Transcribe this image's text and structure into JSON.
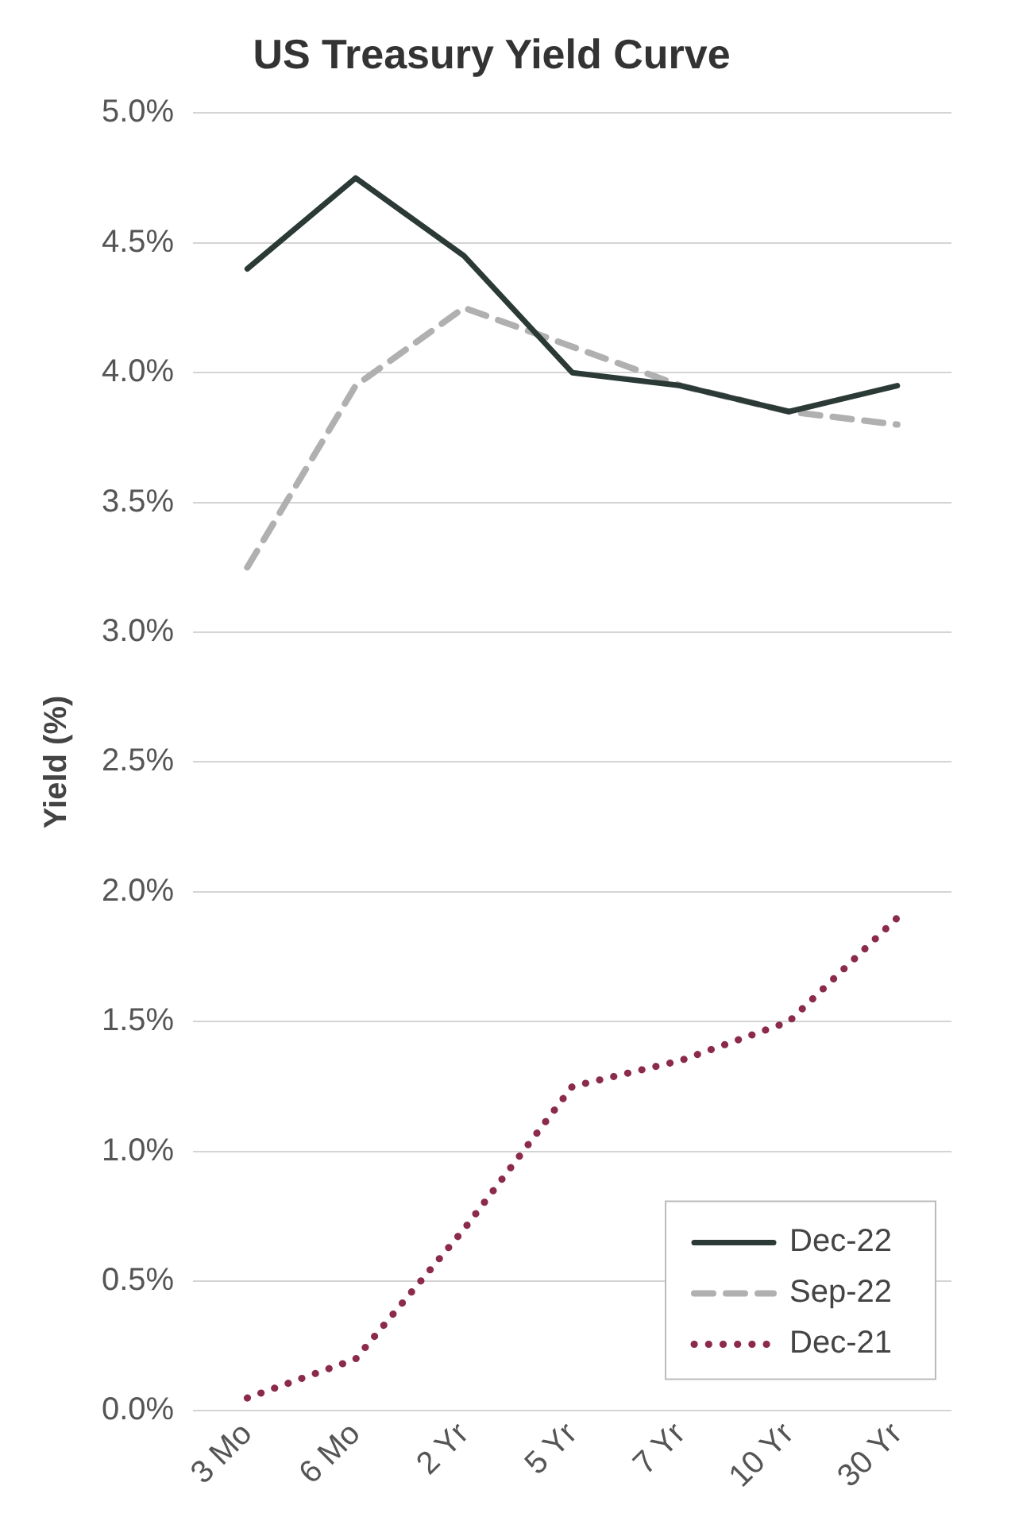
{
  "chart_data": {
    "type": "line",
    "title": "US Treasury Yield Curve",
    "ylabel": "Yield (%)",
    "categories": [
      "3 Mo",
      "6 Mo",
      "2 Yr",
      "5 Yr",
      "7 Yr",
      "10 Yr",
      "30 Yr"
    ],
    "series": [
      {
        "name": "Dec-22",
        "color": "#2b3a36",
        "line_style": "solid",
        "values": [
          4.4,
          4.75,
          4.45,
          4.0,
          3.95,
          3.85,
          3.95
        ]
      },
      {
        "name": "Sep-22",
        "color": "#b0b0b0",
        "line_style": "dashed",
        "values": [
          3.25,
          3.95,
          4.25,
          4.1,
          3.95,
          3.85,
          3.8
        ]
      },
      {
        "name": "Dec-21",
        "color": "#8b2a4a",
        "line_style": "dotted",
        "values": [
          0.05,
          0.2,
          0.7,
          1.25,
          1.35,
          1.5,
          1.9
        ]
      }
    ],
    "ylim": [
      0,
      5
    ],
    "yticks": [
      {
        "value": 0,
        "label": "0.0%"
      },
      {
        "value": 0.5,
        "label": "0.5%"
      },
      {
        "value": 1,
        "label": "1.0%"
      },
      {
        "value": 1.5,
        "label": "1.5%"
      },
      {
        "value": 2,
        "label": "2.0%"
      },
      {
        "value": 2.5,
        "label": "2.5%"
      },
      {
        "value": 3,
        "label": "3.0%"
      },
      {
        "value": 3.5,
        "label": "3.5%"
      },
      {
        "value": 4,
        "label": "4.0%"
      },
      {
        "value": 4.5,
        "label": "4.5%"
      },
      {
        "value": 5,
        "label": "5.0%"
      }
    ],
    "grid": "y",
    "legend": "bottom right",
    "marker": "none"
  }
}
